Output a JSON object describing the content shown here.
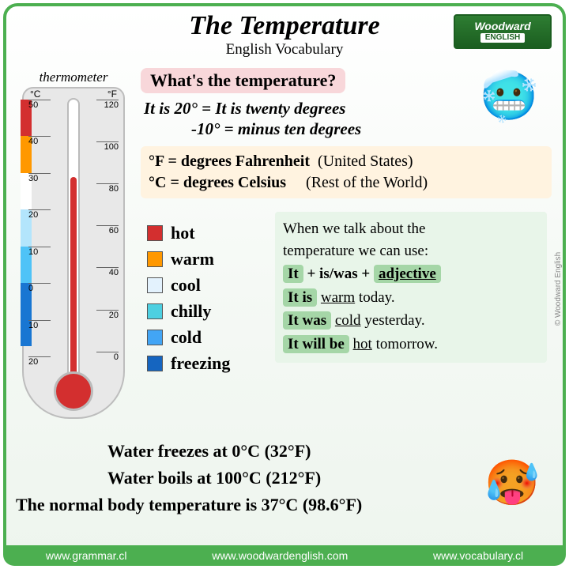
{
  "title": "The Temperature",
  "subtitle": "English Vocabulary",
  "logo": {
    "brand": "Woodward",
    "sub": "ENGLISH"
  },
  "thermometer": {
    "label": "thermometer",
    "unit_c": "°C",
    "unit_f": "°F",
    "ticks_c": [
      {
        "v": "50",
        "p": 0
      },
      {
        "v": "40",
        "p": 14
      },
      {
        "v": "30",
        "p": 28
      },
      {
        "v": "20",
        "p": 42
      },
      {
        "v": "10",
        "p": 56
      },
      {
        "v": "0",
        "p": 70
      },
      {
        "v": "10",
        "p": 84
      },
      {
        "v": "20",
        "p": 98
      }
    ],
    "ticks_f": [
      {
        "v": "120",
        "p": 0
      },
      {
        "v": "100",
        "p": 16
      },
      {
        "v": "80",
        "p": 32
      },
      {
        "v": "60",
        "p": 48
      },
      {
        "v": "40",
        "p": 64
      },
      {
        "v": "20",
        "p": 80
      },
      {
        "v": "0",
        "p": 96
      }
    ],
    "colorbar": [
      {
        "color": "#d32f2f",
        "h": 14
      },
      {
        "color": "#ff9800",
        "h": 14
      },
      {
        "color": "#ffffff",
        "h": 14
      },
      {
        "color": "#b3e5fc",
        "h": 14
      },
      {
        "color": "#4fc3f7",
        "h": 14
      },
      {
        "color": "#1976d2",
        "h": 24
      }
    ]
  },
  "question": "What's the temperature?",
  "example1": "It is 20° = It is twenty degrees",
  "example2": "-10° = minus ten degrees",
  "fahrenheit_line": {
    "sym": "°F",
    "eq": " = degrees Fahrenheit",
    "note": "(United States)"
  },
  "celsius_line": {
    "sym": "°C",
    "eq": " = degrees Celsius",
    "note": "(Rest of the World)"
  },
  "legend": [
    {
      "color": "#d32f2f",
      "label": "hot"
    },
    {
      "color": "#ff9800",
      "label": "warm"
    },
    {
      "color": "#e3f2fd",
      "label": "cool"
    },
    {
      "color": "#4dd0e1",
      "label": "chilly"
    },
    {
      "color": "#42a5f5",
      "label": "cold"
    },
    {
      "color": "#1565c0",
      "label": "freezing"
    }
  ],
  "grammar": {
    "intro1": "When we talk about the",
    "intro2": "temperature we can use:",
    "pattern_it": "It",
    "pattern_isw": " + is/was + ",
    "pattern_adj": "adjective",
    "ex1_a": "It is",
    "ex1_b": "warm",
    "ex1_c": " today.",
    "ex2_a": "It was",
    "ex2_b": "cold",
    "ex2_c": " yesterday.",
    "ex3_a": "It will be",
    "ex3_b": "hot",
    "ex3_c": " tomorrow."
  },
  "facts": {
    "freeze": "Water freezes at 0°C (32°F)",
    "boil": "Water boils at 100°C (212°F)",
    "body": "The normal body temperature is 37°C (98.6°F)"
  },
  "footer": [
    "www.grammar.cl",
    "www.woodwardenglish.com",
    "www.vocabulary.cl"
  ],
  "copyright": "© Woodward English"
}
